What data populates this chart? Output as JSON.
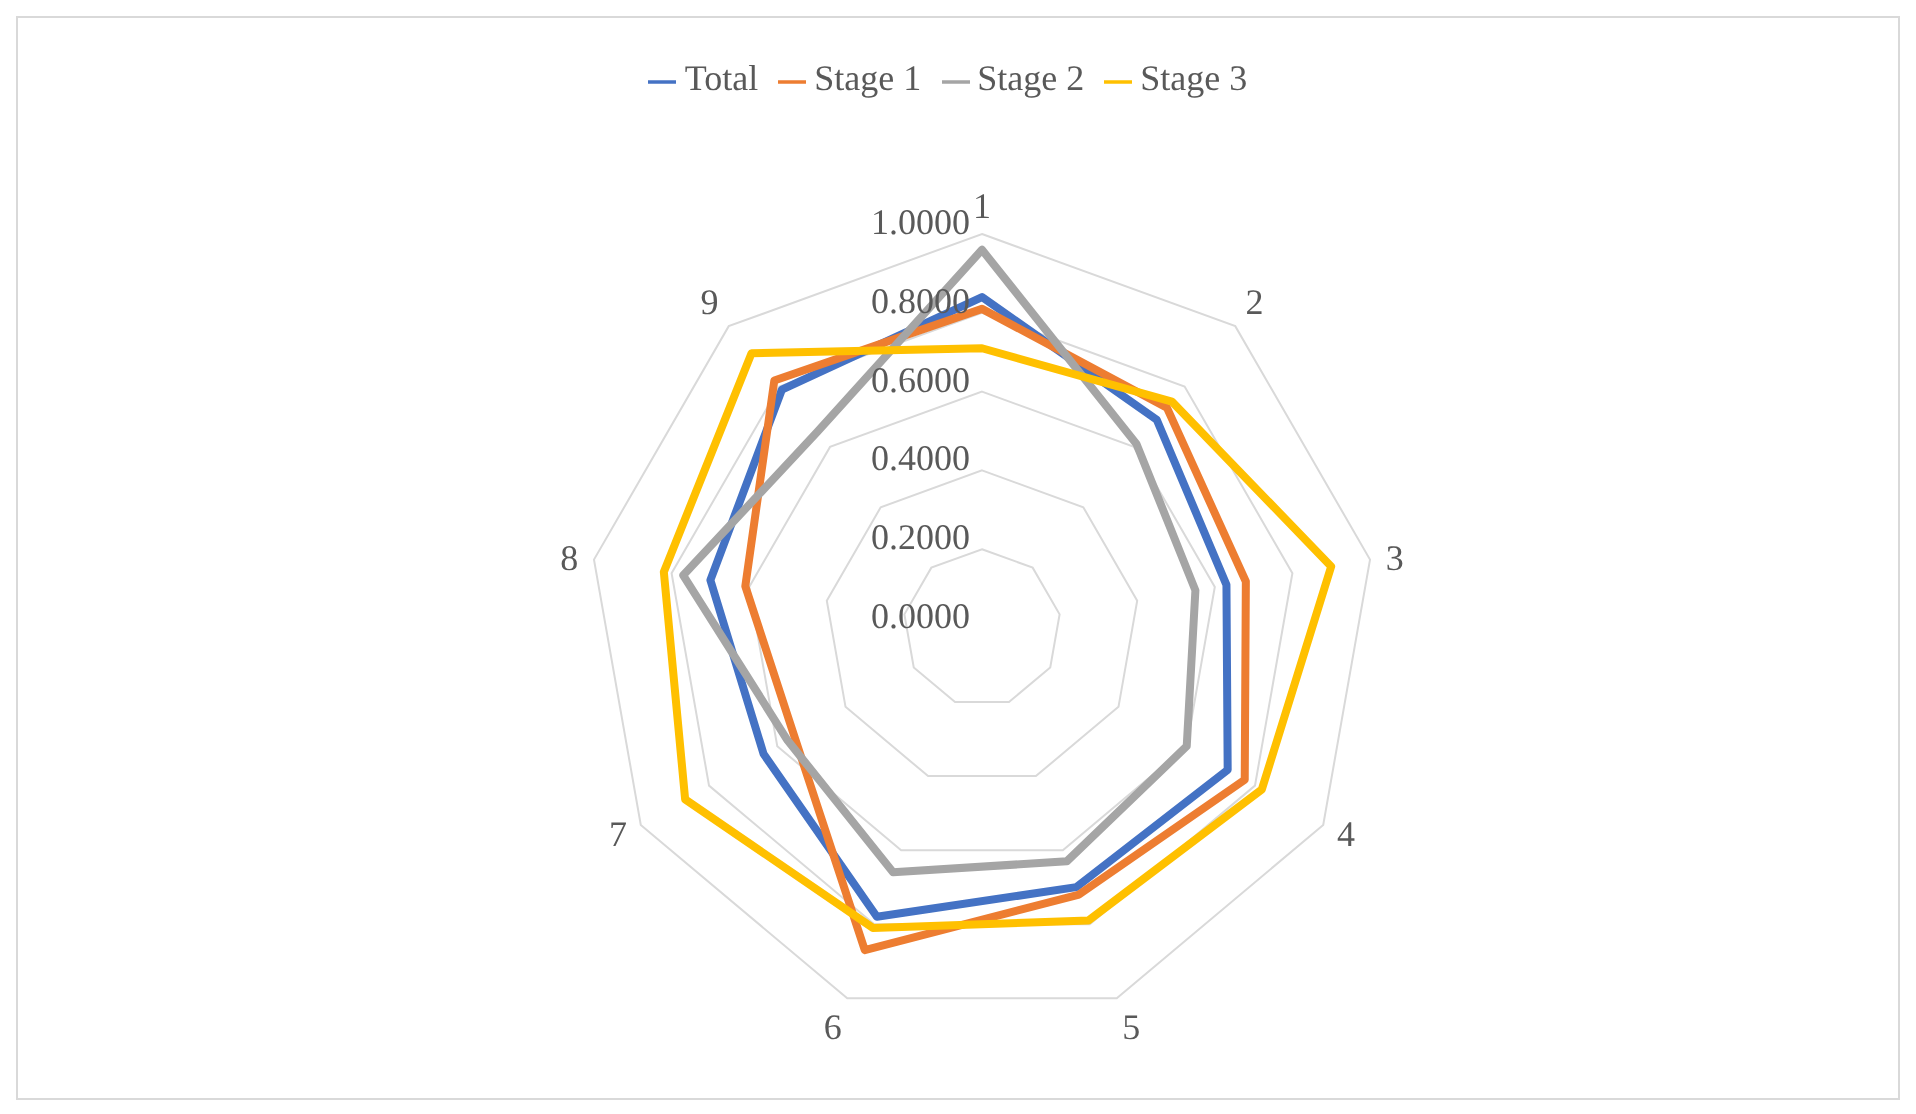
{
  "chart_data": {
    "type": "radar",
    "categories": [
      "1",
      "2",
      "3",
      "4",
      "5",
      "6",
      "7",
      "8",
      "9"
    ],
    "series": [
      {
        "name": "Total",
        "color": "#4472c4",
        "values": [
          0.84,
          0.69,
          0.63,
          0.72,
          0.7,
          0.78,
          0.64,
          0.7,
          0.79
        ]
      },
      {
        "name": "Stage 1",
        "color": "#ed7d31",
        "values": [
          0.81,
          0.73,
          0.68,
          0.77,
          0.72,
          0.87,
          0.55,
          0.61,
          0.82
        ]
      },
      {
        "name": "Stage 2",
        "color": "#a5a5a5",
        "values": [
          0.96,
          0.61,
          0.55,
          0.6,
          0.63,
          0.66,
          0.57,
          0.77,
          0.65
        ]
      },
      {
        "name": "Stage 3",
        "color": "#ffc000",
        "values": [
          0.71,
          0.75,
          0.9,
          0.82,
          0.79,
          0.81,
          0.87,
          0.82,
          0.91
        ]
      }
    ],
    "ylim": [
      0,
      1
    ],
    "yticks": [
      {
        "value": 0,
        "label": "0.0000"
      },
      {
        "value": 0.2,
        "label": "0.2000"
      },
      {
        "value": 0.4,
        "label": "0.4000"
      },
      {
        "value": 0.6,
        "label": "0.6000"
      },
      {
        "value": 0.8,
        "label": "0.8000"
      },
      {
        "value": 1,
        "label": "1.0000"
      }
    ],
    "grid": true,
    "legend": "top",
    "marker": "none",
    "line_style": "solid"
  }
}
